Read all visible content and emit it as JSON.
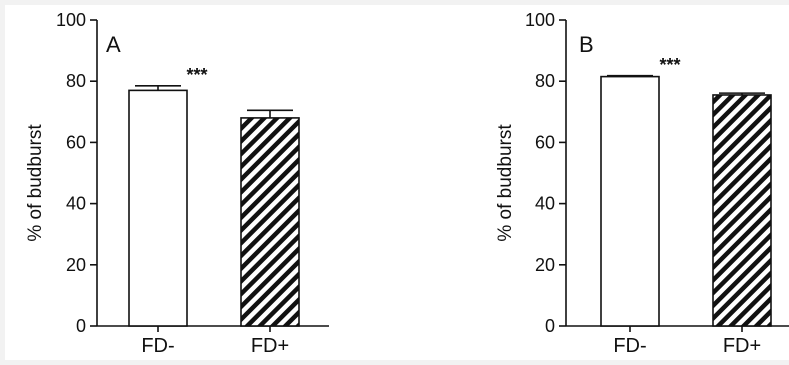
{
  "chart_data": [
    {
      "type": "bar",
      "panel_label": "A",
      "categories": [
        "FD-",
        "FD+"
      ],
      "values": [
        77,
        68
      ],
      "errors": [
        1.5,
        2.5
      ],
      "ylabel": "% of budburst",
      "ylim": [
        0,
        100
      ],
      "yticks": [
        0,
        20,
        40,
        60,
        80,
        100
      ],
      "significance": "***",
      "bar_fills": [
        "white",
        "diagonal-hatch"
      ],
      "colors": {
        "bar_stroke": "#111111",
        "hatch": "#111111",
        "open_bar": "#ffffff"
      },
      "grid": false
    },
    {
      "type": "bar",
      "panel_label": "B",
      "categories": [
        "FD-",
        "FD+"
      ],
      "values": [
        81.5,
        75.5
      ],
      "errors": [
        0.3,
        0.6
      ],
      "ylabel": "% of budburst",
      "ylim": [
        0,
        100
      ],
      "yticks": [
        0,
        20,
        40,
        60,
        80,
        100
      ],
      "significance": "***",
      "bar_fills": [
        "white",
        "diagonal-hatch"
      ],
      "colors": {
        "bar_stroke": "#111111",
        "hatch": "#111111",
        "open_bar": "#ffffff"
      },
      "grid": false
    }
  ]
}
